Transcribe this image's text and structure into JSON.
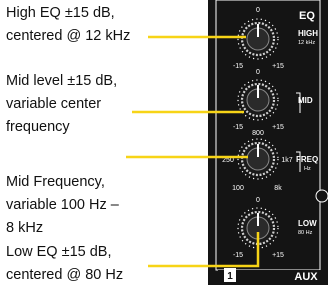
{
  "annotations": [
    {
      "lines": [
        "High EQ ±15 dB,",
        "centered @ 12 kHz"
      ]
    },
    {
      "lines": [
        "Mid level ±15 dB,",
        "variable center",
        "frequency"
      ]
    },
    {
      "lines": [
        "Mid Frequency,",
        "variable 100 Hz –",
        "8 kHz"
      ]
    },
    {
      "lines": [
        "Low EQ ±15 dB,",
        "centered @ 80 Hz"
      ]
    }
  ],
  "section": "EQ",
  "knobs": [
    {
      "label": "HIGH",
      "sublabel": "12 kHz",
      "center": "0",
      "min": "-15",
      "max": "+15"
    },
    {
      "label": "MID",
      "center": "0",
      "min": "-15",
      "max": "+15"
    },
    {
      "label": "FREQ",
      "sublabel": "Hz",
      "center": "800",
      "left": "250",
      "right": "1k7",
      "min": "100",
      "max": "8k"
    },
    {
      "label": "LOW",
      "sublabel": "80 Hz",
      "center": "0",
      "min": "-15",
      "max": "+15"
    }
  ],
  "next_section": {
    "number": "1",
    "label": "AUX"
  }
}
